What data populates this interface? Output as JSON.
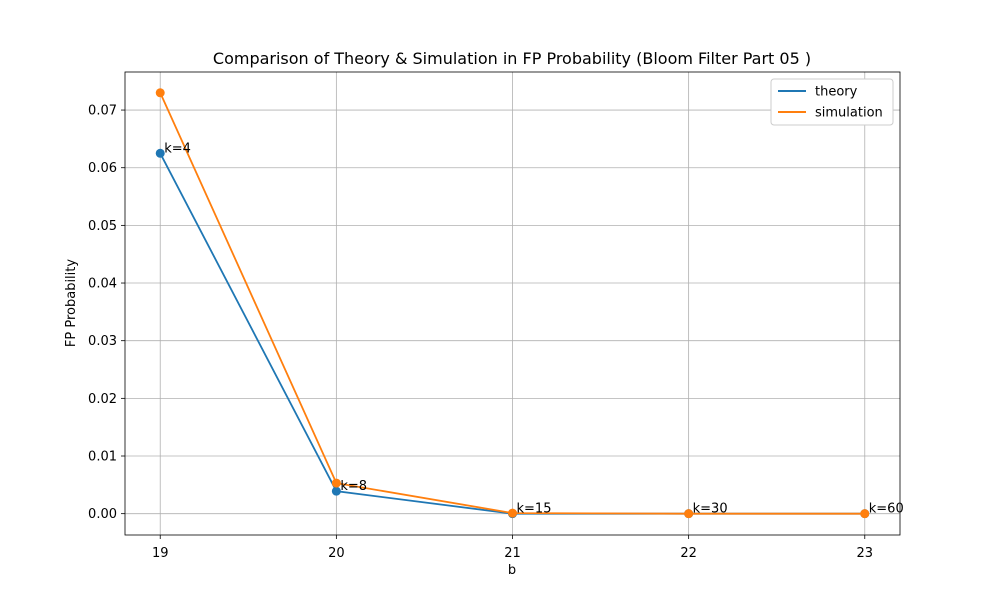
{
  "chart_data": {
    "type": "line",
    "title": "Comparison of Theory & Simulation in FP Probability (Bloom Filter Part 05 )",
    "xlabel": "b",
    "ylabel": "FP Probability",
    "x": [
      19,
      20,
      21,
      22,
      23
    ],
    "xticks": [
      "19",
      "20",
      "21",
      "22",
      "23"
    ],
    "yticks": [
      "0.00",
      "0.01",
      "0.02",
      "0.03",
      "0.04",
      "0.05",
      "0.06",
      "0.07"
    ],
    "xlim": [
      18.8,
      23.2
    ],
    "ylim": [
      -0.0037,
      0.0766
    ],
    "grid": true,
    "legend_position": "top-right",
    "series": [
      {
        "name": "theory",
        "color": "#1f77b4",
        "values": [
          0.0625,
          0.0039,
          0.0,
          0.0,
          0.0
        ]
      },
      {
        "name": "simulation",
        "color": "#ff7f0e",
        "values": [
          0.073,
          0.0053,
          0.0001,
          0.0,
          0.0
        ]
      }
    ],
    "annotations": [
      "k=4",
      "k=8",
      "k=15",
      "k=30",
      "k=60"
    ]
  }
}
